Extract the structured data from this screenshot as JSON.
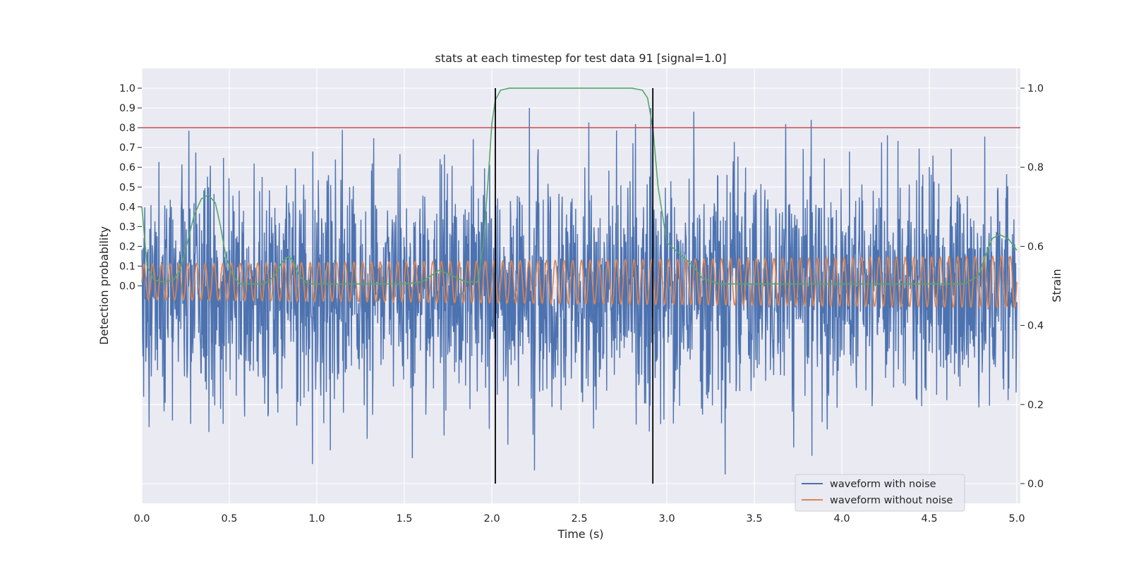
{
  "chart_data": {
    "type": "line",
    "title": "stats at each timestep for test data 91 [signal=1.0]",
    "xlabel": "Time (s)",
    "ylabel_left": "Detection probability",
    "ylabel_right": "Strain",
    "xlim": [
      0.0,
      5.02
    ],
    "ylim_left": [
      -1.1,
      1.1
    ],
    "ylim_right": [
      -0.05,
      1.05
    ],
    "x_ticks": [
      "0.0",
      "0.5",
      "1.0",
      "1.5",
      "2.0",
      "2.5",
      "3.0",
      "3.5",
      "4.0",
      "4.5",
      "5.0"
    ],
    "x_tick_values": [
      0.0,
      0.5,
      1.0,
      1.5,
      2.0,
      2.5,
      3.0,
      3.5,
      4.0,
      4.5,
      5.0
    ],
    "left_ticks": [
      "0.0",
      "0.1",
      "0.2",
      "0.3",
      "0.4",
      "0.5",
      "0.6",
      "0.7",
      "0.8",
      "0.9",
      "1.0"
    ],
    "left_tick_values": [
      0.0,
      0.1,
      0.2,
      0.3,
      0.4,
      0.5,
      0.6,
      0.7,
      0.8,
      0.9,
      1.0
    ],
    "right_ticks": [
      "0.0",
      "0.2",
      "0.4",
      "0.6",
      "0.8",
      "1.0"
    ],
    "right_tick_values": [
      0.0,
      0.2,
      0.4,
      0.6,
      0.8,
      1.0
    ],
    "grid": true,
    "legend_position": "bottom-right",
    "threshold": {
      "value": 0.8,
      "color": "#c44e52"
    },
    "event_markers": {
      "x": [
        2.02,
        2.92
      ],
      "color": "#000000"
    },
    "series": [
      {
        "name": "waveform with noise",
        "axis": "right",
        "color": "#4c72b0",
        "kind": "noise",
        "noise_center": 0.49,
        "noise_range_min": 0.0,
        "noise_range_max": 0.95
      },
      {
        "name": "waveform without noise",
        "axis": "right",
        "color": "#dd8452",
        "kind": "sinusoid",
        "center": 0.51,
        "amplitude_start": 0.045,
        "amplitude_end": 0.065,
        "cycles": 100
      },
      {
        "axis": "left",
        "color": "#55a868",
        "kind": "probability",
        "x": [
          0.0,
          0.03,
          0.07,
          0.12,
          0.18,
          0.22,
          0.26,
          0.3,
          0.34,
          0.38,
          0.42,
          0.45,
          0.48,
          0.52,
          0.56,
          0.62,
          0.7,
          0.76,
          0.8,
          0.84,
          0.87,
          0.9,
          0.95,
          1.05,
          1.5,
          1.6,
          1.7,
          1.78,
          1.85,
          1.92,
          1.95,
          1.98,
          2.0,
          2.02,
          2.05,
          2.1,
          2.2,
          2.5,
          2.8,
          2.86,
          2.89,
          2.92,
          2.95,
          3.0,
          3.05,
          3.1,
          3.15,
          3.2,
          3.3,
          3.6,
          4.0,
          4.7,
          4.78,
          4.82,
          4.86,
          4.9,
          4.95,
          5.0
        ],
        "y": [
          0.4,
          0.1,
          0.03,
          0.02,
          0.03,
          0.08,
          0.22,
          0.36,
          0.44,
          0.46,
          0.42,
          0.3,
          0.15,
          0.05,
          0.01,
          0.01,
          0.01,
          0.05,
          0.12,
          0.15,
          0.12,
          0.05,
          0.01,
          0.01,
          0.01,
          0.02,
          0.08,
          0.05,
          0.02,
          0.02,
          0.2,
          0.55,
          0.82,
          0.94,
          0.99,
          1.0,
          1.0,
          1.0,
          1.0,
          0.99,
          0.95,
          0.8,
          0.5,
          0.22,
          0.18,
          0.14,
          0.1,
          0.04,
          0.01,
          0.01,
          0.01,
          0.01,
          0.05,
          0.15,
          0.24,
          0.26,
          0.24,
          0.18
        ]
      }
    ]
  }
}
